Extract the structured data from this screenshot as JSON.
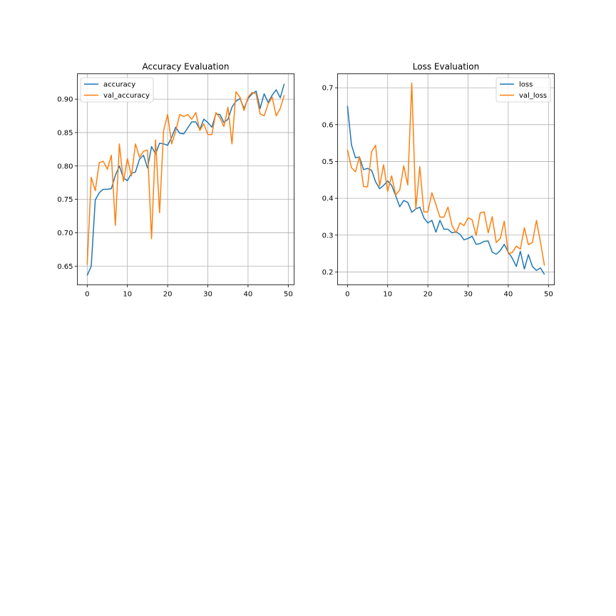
{
  "chart_data": [
    {
      "type": "line",
      "title": "Accuracy Evaluation",
      "xlabel": "",
      "ylabel": "",
      "xlim": [
        -2.45,
        51.45
      ],
      "ylim": [
        0.622,
        0.938
      ],
      "xticks": [
        0,
        10,
        20,
        30,
        40,
        50
      ],
      "yticks": [
        0.65,
        0.7,
        0.75,
        0.8,
        0.85,
        0.9
      ],
      "ytick_labels": [
        "0.65",
        "0.70",
        "0.75",
        "0.80",
        "0.85",
        "0.90"
      ],
      "grid": true,
      "legend": "upper-left",
      "x": [
        0,
        1,
        2,
        3,
        4,
        5,
        6,
        7,
        8,
        9,
        10,
        11,
        12,
        13,
        14,
        15,
        16,
        17,
        18,
        19,
        20,
        21,
        22,
        23,
        24,
        25,
        26,
        27,
        28,
        29,
        30,
        31,
        32,
        33,
        34,
        35,
        36,
        37,
        38,
        39,
        40,
        41,
        42,
        43,
        44,
        45,
        46,
        47,
        48,
        49
      ],
      "series": [
        {
          "name": "accuracy",
          "color": "#1f77b4",
          "values": [
            0.636,
            0.65,
            0.749,
            0.76,
            0.765,
            0.765,
            0.766,
            0.786,
            0.8,
            0.782,
            0.778,
            0.789,
            0.791,
            0.81,
            0.816,
            0.797,
            0.829,
            0.818,
            0.834,
            0.833,
            0.831,
            0.843,
            0.858,
            0.849,
            0.848,
            0.857,
            0.866,
            0.866,
            0.855,
            0.87,
            0.865,
            0.858,
            0.878,
            0.877,
            0.865,
            0.87,
            0.888,
            0.897,
            0.901,
            0.886,
            0.901,
            0.908,
            0.912,
            0.886,
            0.908,
            0.895,
            0.906,
            0.914,
            0.902,
            0.923
          ]
        },
        {
          "name": "val_accuracy",
          "color": "#ff7f0e",
          "values": [
            0.652,
            0.783,
            0.763,
            0.805,
            0.807,
            0.795,
            0.816,
            0.711,
            0.833,
            0.777,
            0.811,
            0.785,
            0.833,
            0.813,
            0.822,
            0.824,
            0.691,
            0.839,
            0.73,
            0.853,
            0.877,
            0.833,
            0.852,
            0.877,
            0.874,
            0.877,
            0.87,
            0.88,
            0.853,
            0.863,
            0.847,
            0.847,
            0.88,
            0.872,
            0.859,
            0.888,
            0.833,
            0.911,
            0.903,
            0.883,
            0.903,
            0.91,
            0.908,
            0.878,
            0.875,
            0.893,
            0.903,
            0.875,
            0.886,
            0.906
          ]
        }
      ]
    },
    {
      "type": "line",
      "title": "Loss Evaluation",
      "xlabel": "",
      "ylabel": "",
      "xlim": [
        -2.45,
        51.45
      ],
      "ylim": [
        0.165,
        0.738
      ],
      "xticks": [
        0,
        10,
        20,
        30,
        40,
        50
      ],
      "yticks": [
        0.2,
        0.3,
        0.4,
        0.5,
        0.6,
        0.7
      ],
      "ytick_labels": [
        "0.2",
        "0.3",
        "0.4",
        "0.5",
        "0.6",
        "0.7"
      ],
      "grid": true,
      "legend": "upper-right",
      "x": [
        0,
        1,
        2,
        3,
        4,
        5,
        6,
        7,
        8,
        9,
        10,
        11,
        12,
        13,
        14,
        15,
        16,
        17,
        18,
        19,
        20,
        21,
        22,
        23,
        24,
        25,
        26,
        27,
        28,
        29,
        30,
        31,
        32,
        33,
        34,
        35,
        36,
        37,
        38,
        39,
        40,
        41,
        42,
        43,
        44,
        45,
        46,
        47,
        48,
        49
      ],
      "series": [
        {
          "name": "loss",
          "color": "#1f77b4",
          "values": [
            0.651,
            0.545,
            0.51,
            0.512,
            0.478,
            0.481,
            0.476,
            0.445,
            0.426,
            0.435,
            0.447,
            0.435,
            0.407,
            0.377,
            0.394,
            0.389,
            0.362,
            0.371,
            0.376,
            0.347,
            0.333,
            0.34,
            0.308,
            0.34,
            0.316,
            0.316,
            0.306,
            0.309,
            0.302,
            0.287,
            0.291,
            0.297,
            0.275,
            0.277,
            0.283,
            0.284,
            0.254,
            0.248,
            0.258,
            0.275,
            0.254,
            0.237,
            0.215,
            0.256,
            0.208,
            0.247,
            0.215,
            0.204,
            0.211,
            0.193
          ]
        },
        {
          "name": "val_loss",
          "color": "#ff7f0e",
          "values": [
            0.532,
            0.483,
            0.472,
            0.513,
            0.432,
            0.431,
            0.526,
            0.544,
            0.433,
            0.491,
            0.419,
            0.461,
            0.409,
            0.422,
            0.488,
            0.436,
            0.713,
            0.371,
            0.486,
            0.363,
            0.363,
            0.415,
            0.383,
            0.349,
            0.349,
            0.376,
            0.326,
            0.306,
            0.333,
            0.326,
            0.347,
            0.342,
            0.299,
            0.36,
            0.363,
            0.306,
            0.35,
            0.28,
            0.291,
            0.338,
            0.249,
            0.253,
            0.27,
            0.262,
            0.32,
            0.274,
            0.28,
            0.34,
            0.281,
            0.217
          ]
        }
      ]
    }
  ]
}
